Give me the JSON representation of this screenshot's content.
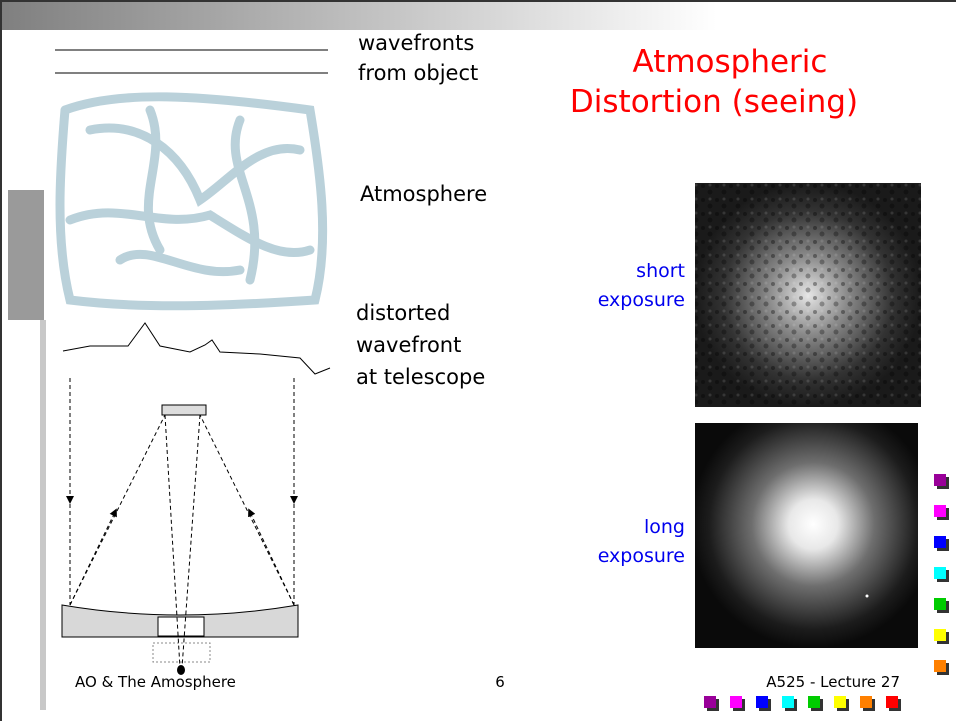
{
  "title": [
    "Atmospheric",
    "Distortion (seeing)"
  ],
  "labels": {
    "wavefronts": [
      "wavefronts",
      "from object"
    ],
    "atmosphere": "Atmosphere",
    "distorted": [
      "distorted",
      "wavefront",
      "at telescope"
    ],
    "short": [
      "short",
      "exposure"
    ],
    "long": [
      "long",
      "exposure"
    ]
  },
  "footer": {
    "left": "AO & The Amosphere",
    "page": "6",
    "right": "A525 - Lecture 27"
  }
}
